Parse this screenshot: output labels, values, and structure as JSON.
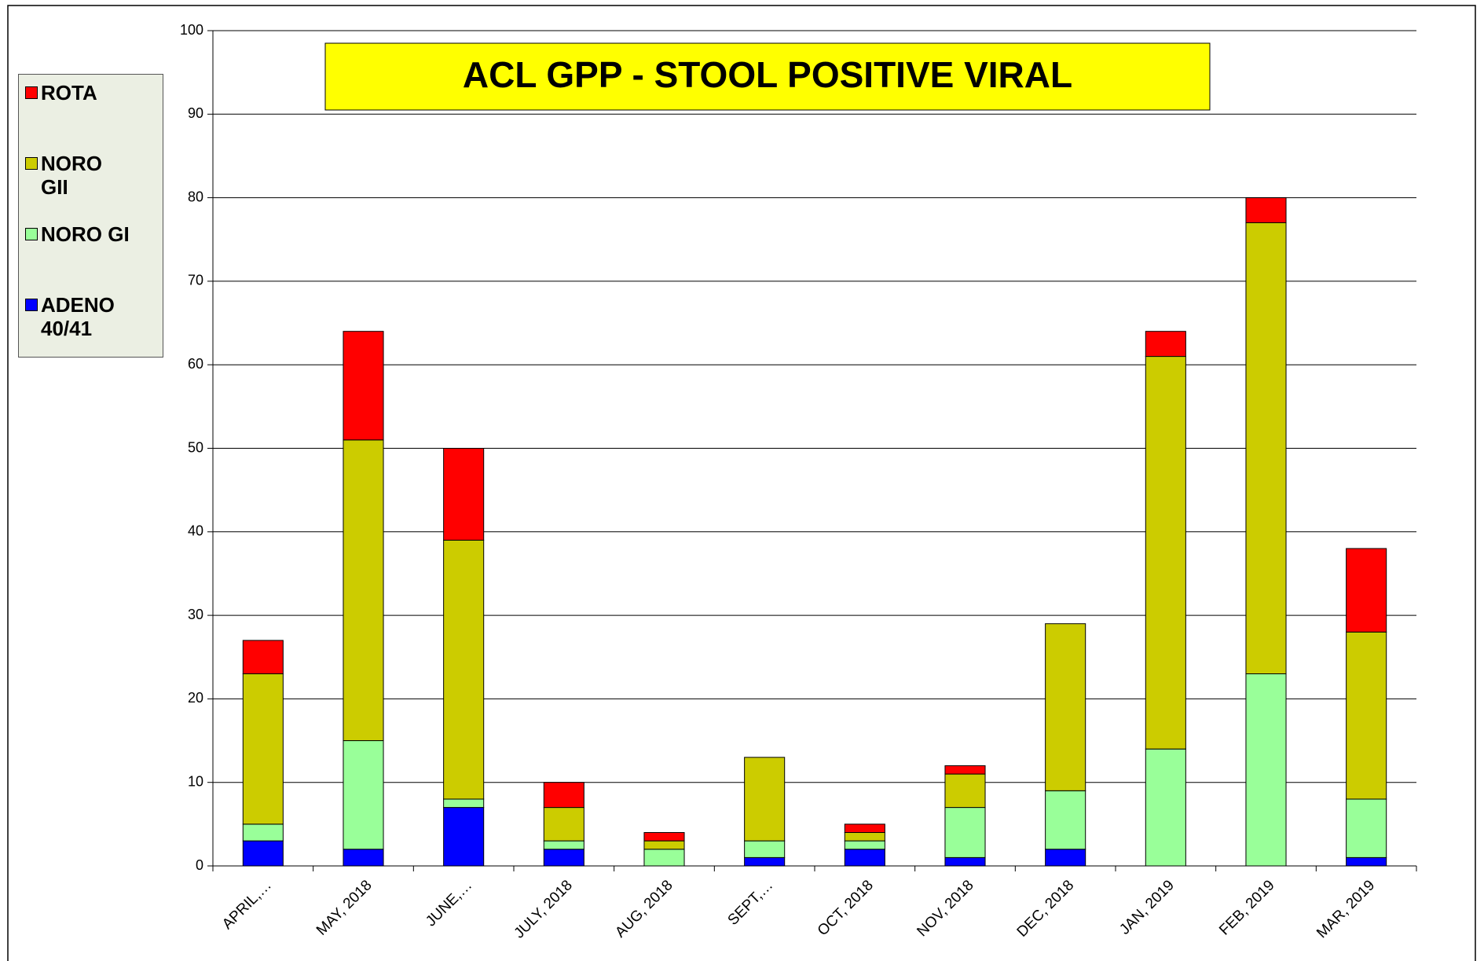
{
  "chart_data": {
    "type": "stacked_bar",
    "title": "ACL GPP - STOOL POSITIVE VIRAL",
    "categories": [
      "APRIL,…",
      "MAY, 2018",
      "JUNE,…",
      "JULY, 2018",
      "AUG, 2018",
      "SEPT,…",
      "OCT, 2018",
      "NOV, 2018",
      "DEC, 2018",
      "JAN, 2019",
      "FEB, 2019",
      "MAR, 2019"
    ],
    "series": [
      {
        "name": "ADENO 40/41",
        "color": "#0000ff",
        "values": [
          3,
          2,
          7,
          2,
          0,
          1,
          2,
          1,
          2,
          0,
          0,
          1
        ]
      },
      {
        "name": "NORO GI",
        "color": "#99ff99",
        "values": [
          2,
          13,
          1,
          1,
          2,
          2,
          1,
          6,
          7,
          14,
          23,
          7
        ]
      },
      {
        "name": "NORO GII",
        "color": "#cccc00",
        "values": [
          18,
          36,
          31,
          4,
          1,
          10,
          1,
          4,
          20,
          47,
          54,
          20
        ]
      },
      {
        "name": "ROTA",
        "color": "#ff0000",
        "values": [
          4,
          13,
          11,
          3,
          1,
          0,
          1,
          1,
          0,
          3,
          3,
          10
        ]
      }
    ],
    "ylim": [
      0,
      100
    ],
    "yticks": [
      0,
      10,
      20,
      30,
      40,
      50,
      60,
      70,
      80,
      90,
      100
    ],
    "grid": true,
    "legend": "left"
  }
}
